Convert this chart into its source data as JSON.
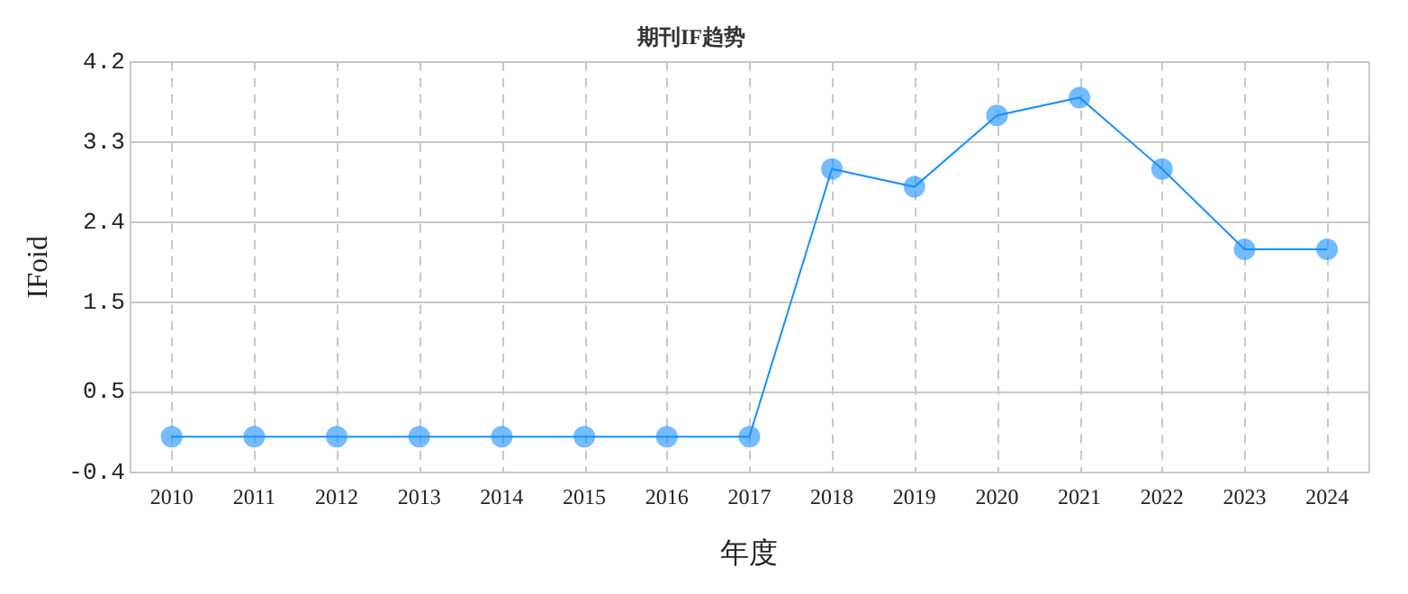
{
  "chart_data": {
    "type": "line",
    "title": "期刊IF趋势",
    "xlabel": "年度",
    "ylabel": "IFoid",
    "categories": [
      "2010",
      "2011",
      "2012",
      "2013",
      "2014",
      "2015",
      "2016",
      "2017",
      "2018",
      "2019",
      "2020",
      "2021",
      "2022",
      "2023",
      "2024"
    ],
    "series": [
      {
        "color": "#1890ff",
        "values": [
          0,
          0,
          0,
          0,
          0,
          0,
          0,
          0,
          3.0,
          2.8,
          3.6,
          3.8,
          3.0,
          2.1,
          2.1
        ]
      }
    ],
    "ylim": [
      -0.4,
      4.2
    ],
    "yticks": [
      -0.4,
      0.5,
      1.5,
      2.4,
      3.3,
      4.2
    ],
    "grid": true,
    "marker": "circle",
    "line_style": "solid",
    "legend": false
  }
}
